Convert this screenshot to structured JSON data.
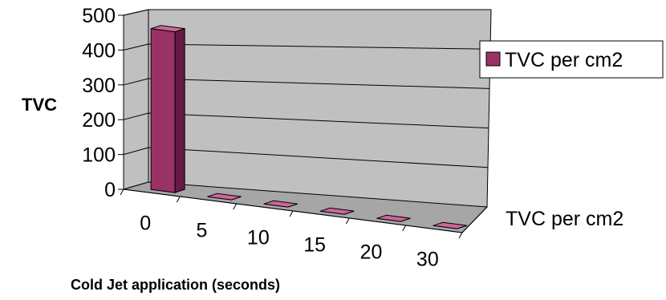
{
  "chart_data": {
    "type": "bar",
    "style": "3d-column",
    "categories": [
      "0",
      "5",
      "10",
      "15",
      "20",
      "30"
    ],
    "series": [
      {
        "name": "TVC per cm2",
        "values": [
          462,
          0,
          0,
          0,
          0,
          0
        ]
      }
    ],
    "depth_axis_label": "TVC per cm2",
    "xlabel": "Cold Jet application (seconds)",
    "ylabel": "TVC",
    "ylim": [
      0,
      500
    ],
    "yticks": [
      "0",
      "100",
      "200",
      "300",
      "400",
      "500"
    ],
    "grid": true,
    "legend_position": "right",
    "colors": {
      "bar_front": "#993366",
      "bar_top": "#cc6699",
      "bar_side": "#661a44",
      "wall": "#c0c0c0",
      "floor": "#a6a6a6",
      "gridline": "#000000"
    }
  }
}
